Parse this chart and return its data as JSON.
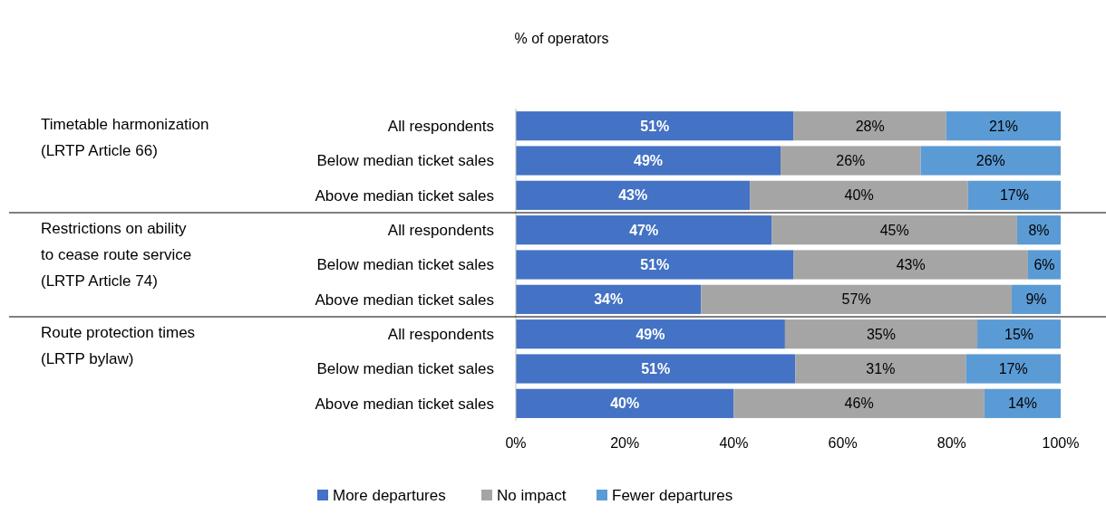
{
  "chart_data": {
    "type": "bar",
    "orientation": "horizontal",
    "stacked": true,
    "title": "% of operators",
    "categories": [
      "All respondents",
      "Below median ticket sales",
      "Above median ticket sales",
      "All respondents",
      "Below median ticket sales",
      "Above median ticket sales",
      "All respondents",
      "Below median ticket sales",
      "Above median ticket sales"
    ],
    "series": [
      {
        "name": "More departures",
        "color": "#4472c4",
        "values": [
          51,
          48.6,
          43,
          47,
          51,
          34,
          49.4,
          51.3,
          40
        ],
        "value_labels": [
          "51%",
          "49%",
          "43%",
          "47%",
          "51%",
          "34%",
          "49%",
          "51%",
          "40%"
        ]
      },
      {
        "name": "No impact",
        "color": "#a5a5a5",
        "values": [
          28,
          25.7,
          40,
          45,
          43,
          57,
          35.3,
          31.3,
          46
        ],
        "value_labels": [
          "28%",
          "26%",
          "40%",
          "45%",
          "43%",
          "57%",
          "35%",
          "31%",
          "46%"
        ]
      },
      {
        "name": "Fewer departures",
        "color": "#5b9bd5",
        "values": [
          21,
          25.7,
          17,
          8,
          6,
          9,
          15.3,
          17.4,
          14
        ],
        "value_labels": [
          "21%",
          "26%",
          "17%",
          "8%",
          "6%",
          "9%",
          "15%",
          "17%",
          "14%"
        ]
      }
    ],
    "xlim": [
      0,
      100
    ],
    "xticks": [
      {
        "value": 0,
        "label": "0%"
      },
      {
        "value": 20,
        "label": "20%"
      },
      {
        "value": 40,
        "label": "40%"
      },
      {
        "value": 60,
        "label": "60%"
      },
      {
        "value": 80,
        "label": "80%"
      },
      {
        "value": 100,
        "label": "100%"
      }
    ],
    "legend": "bottom",
    "grid": false,
    "annotations": [
      "Timetable harmonization (LRTP Article 66)",
      "Restrictions on ability to cease route service (LRTP Article 74)",
      "Route protection times (LRTP bylaw)"
    ]
  }
}
